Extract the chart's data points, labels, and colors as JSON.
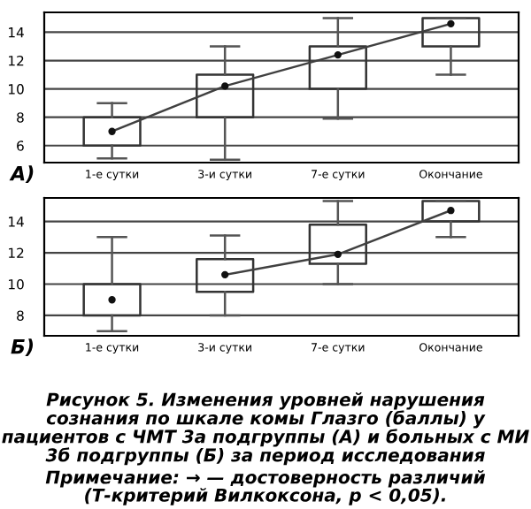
{
  "chart_data": [
    {
      "type": "box",
      "categories": [
        "1-е сутки",
        "3-и сутки",
        "7-е сутки",
        "Окончание"
      ],
      "boxes": [
        {
          "low": 5.1,
          "q1": 6,
          "median": 7,
          "q3": 8,
          "high": 9
        },
        {
          "low": 5.0,
          "q1": 8,
          "median": 10.2,
          "q3": 11,
          "high": 13
        },
        {
          "low": 7.9,
          "q1": 10,
          "median": 12.4,
          "q3": 13,
          "high": 15
        },
        {
          "low": 11,
          "q1": 13,
          "median": 14.6,
          "q3": 15,
          "high": 15
        }
      ],
      "series": [
        {
          "type": "line",
          "color": "#404040",
          "values": [
            7,
            10.2,
            12.4,
            14.6
          ]
        }
      ],
      "line_style": "solid",
      "ylim": [
        4.8,
        15.4
      ],
      "yticks": [
        6,
        8,
        10,
        12,
        14
      ],
      "grid": "y",
      "annotations": [
        "А)"
      ]
    },
    {
      "type": "box",
      "categories": [
        "1-е сутки",
        "3-и сутки",
        "7-е сутки",
        "Окончание"
      ],
      "boxes": [
        {
          "low": 7.0,
          "q1": 8,
          "median": 9,
          "q3": 10,
          "high": 13
        },
        {
          "low": 8,
          "q1": 9.5,
          "median": 10.6,
          "q3": 11.6,
          "high": 13.1
        },
        {
          "low": 10,
          "q1": 11.3,
          "median": 11.9,
          "q3": 13.8,
          "high": 15.3
        },
        {
          "low": 13,
          "q1": 14,
          "median": 14.7,
          "q3": 15.3,
          "high": 15.3
        }
      ],
      "series": [
        {
          "type": "line",
          "color": "#404040",
          "values": [
            null,
            10.6,
            11.9,
            14.7
          ]
        }
      ],
      "line_style": "solid",
      "ylim": [
        6.7,
        15.5
      ],
      "yticks": [
        8,
        10,
        12,
        14
      ],
      "grid": "y",
      "annotations": [
        "Б)",
        "Рисунок 5. Изменения уровней нарушения сознания по шкале комы Глазго (баллы) у пациентов с ЧМТ 3а подгруппы (А) и больных с МИ 3б подгруппы (Б) за период исследования",
        "Примечание: → — достоверность различий (Т-критерий Вилкоксона, р < 0,05)."
      ]
    }
  ]
}
